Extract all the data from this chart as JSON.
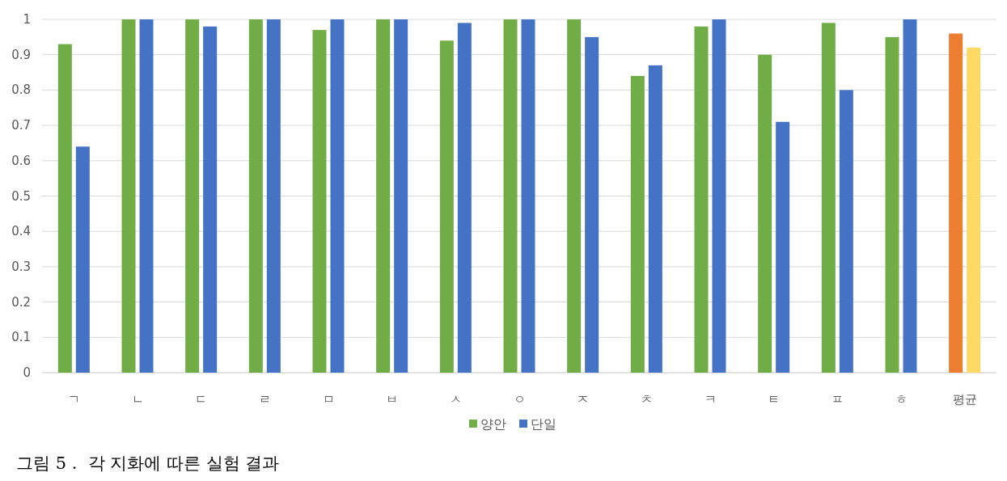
{
  "chart_data": {
    "type": "bar",
    "categories": [
      "ㄱ",
      "ㄴ",
      "ㄷ",
      "ㄹ",
      "ㅁ",
      "ㅂ",
      "ㅅ",
      "ㅇ",
      "ㅈ",
      "ㅊ",
      "ㅋ",
      "ㅌ",
      "ㅍ",
      "ㅎ",
      "평균"
    ],
    "series": [
      {
        "name": "양안",
        "color": "#70ad47",
        "colors": [
          "#70ad47",
          "#70ad47",
          "#70ad47",
          "#70ad47",
          "#70ad47",
          "#70ad47",
          "#70ad47",
          "#70ad47",
          "#70ad47",
          "#70ad47",
          "#70ad47",
          "#70ad47",
          "#70ad47",
          "#70ad47",
          "#ed7d31"
        ],
        "values": [
          0.93,
          1,
          1,
          1,
          0.97,
          1,
          0.94,
          1,
          1,
          0.84,
          0.98,
          0.9,
          0.99,
          0.95,
          0.96
        ]
      },
      {
        "name": "단일",
        "color": "#4472c4",
        "colors": [
          "#4472c4",
          "#4472c4",
          "#4472c4",
          "#4472c4",
          "#4472c4",
          "#4472c4",
          "#4472c4",
          "#4472c4",
          "#4472c4",
          "#4472c4",
          "#4472c4",
          "#4472c4",
          "#4472c4",
          "#4472c4",
          "#ffd966"
        ],
        "values": [
          0.64,
          1,
          0.98,
          1,
          1,
          1,
          0.99,
          1,
          0.95,
          0.87,
          1,
          0.71,
          0.8,
          1,
          0.92
        ]
      }
    ],
    "ylim": [
      0,
      1
    ],
    "yticks": [
      0,
      0.1,
      0.2,
      0.3,
      0.4,
      0.5,
      0.6,
      0.7,
      0.8,
      0.9,
      1
    ],
    "grid": "y",
    "legend": "bottom",
    "annotations": [
      "그림 5 .  각 지화에 따른 실험 결과"
    ]
  }
}
